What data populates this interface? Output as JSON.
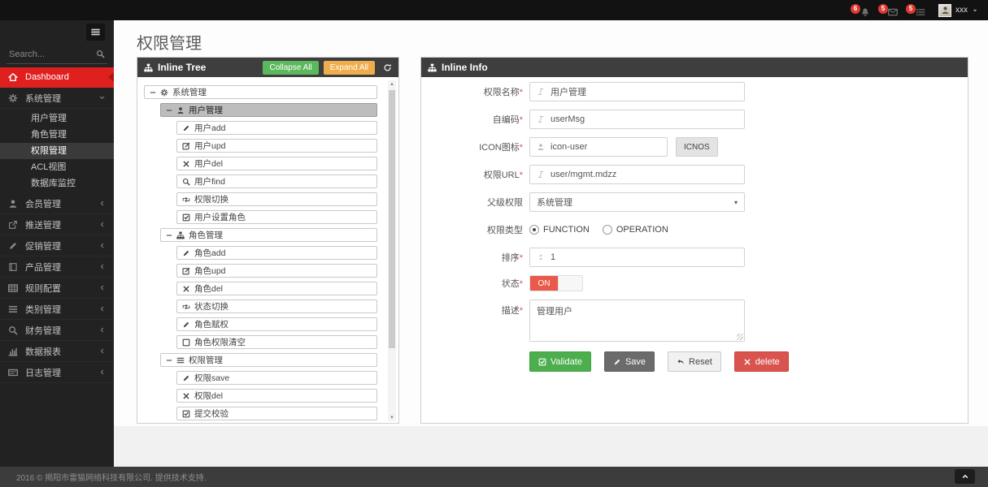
{
  "navbar": {
    "notifications": [
      {
        "key": "notifications-bell",
        "icon": "bell",
        "count": "6"
      },
      {
        "key": "notifications-messages",
        "icon": "envelope",
        "count": "5"
      },
      {
        "key": "notifications-tasks",
        "icon": "tasks",
        "count": "5"
      }
    ],
    "user": {
      "name": "xxx"
    }
  },
  "sidebar": {
    "search_placeholder": "Search...",
    "items": [
      {
        "key": "dashboard",
        "icon": "home",
        "label": "Dashboard",
        "active": true
      },
      {
        "key": "system-mgmt",
        "icon": "gears",
        "label": "系统管理",
        "chevron": "down",
        "children": [
          {
            "key": "user-mgmt",
            "label": "用户管理"
          },
          {
            "key": "role-mgmt",
            "label": "角色管理"
          },
          {
            "key": "perm-mgmt",
            "label": "权限管理",
            "active": true
          },
          {
            "key": "acl-view",
            "label": "ACL视图"
          },
          {
            "key": "db-monitor",
            "label": "数据库监控"
          }
        ]
      },
      {
        "key": "member-mgmt",
        "icon": "user",
        "label": "会员管理",
        "chevron": "left"
      },
      {
        "key": "push-mgmt",
        "icon": "share",
        "label": "推送管理",
        "chevron": "left"
      },
      {
        "key": "promo-mgmt",
        "icon": "pencil",
        "label": "促销管理",
        "chevron": "left"
      },
      {
        "key": "product-mgmt",
        "icon": "book",
        "label": "产品管理",
        "chevron": "left"
      },
      {
        "key": "rule-config",
        "icon": "table",
        "label": "规则配置",
        "chevron": "left"
      },
      {
        "key": "category-mgmt",
        "icon": "list",
        "label": "类别管理",
        "chevron": "left"
      },
      {
        "key": "finance-mgmt",
        "icon": "search",
        "label": "财务管理",
        "chevron": "left"
      },
      {
        "key": "data-report",
        "icon": "chart",
        "label": "数据报表",
        "chevron": "left"
      },
      {
        "key": "log-mgmt",
        "icon": "file",
        "label": "日志管理",
        "chevron": "left"
      }
    ]
  },
  "page": {
    "title": "权限管理"
  },
  "tree_panel": {
    "title": "Inline Tree",
    "collapse_all": "Collapse All",
    "expand_all": "Expand All",
    "nodes": [
      {
        "key": "system-mgmt",
        "level": 0,
        "toggle": "-",
        "icon": "gears",
        "label": "系统管理"
      },
      {
        "key": "user-mgmt",
        "level": 1,
        "toggle": "-",
        "icon": "user",
        "label": "用户管理",
        "selected": true
      },
      {
        "key": "user-add",
        "level": 2,
        "icon": "pencil",
        "label": "用户add"
      },
      {
        "key": "user-upd",
        "level": 2,
        "icon": "pencil-square",
        "label": "用户upd"
      },
      {
        "key": "user-del",
        "level": 2,
        "icon": "x",
        "label": "用户del"
      },
      {
        "key": "user-find",
        "level": 2,
        "icon": "search",
        "label": "用户find"
      },
      {
        "key": "perm-switch",
        "level": 2,
        "icon": "retweet",
        "label": "权限切换"
      },
      {
        "key": "user-set-role",
        "level": 2,
        "icon": "check-square",
        "label": "用户设置角色"
      },
      {
        "key": "role-mgmt",
        "level": 1,
        "toggle": "-",
        "icon": "sitemap",
        "label": "角色管理"
      },
      {
        "key": "role-add",
        "level": 2,
        "icon": "pencil",
        "label": "角色add"
      },
      {
        "key": "role-upd",
        "level": 2,
        "icon": "pencil-square",
        "label": "角色upd"
      },
      {
        "key": "role-del",
        "level": 2,
        "icon": "x",
        "label": "角色del"
      },
      {
        "key": "status-switch",
        "level": 2,
        "icon": "retweet",
        "label": "状态切换"
      },
      {
        "key": "role-grant",
        "level": 2,
        "icon": "pencil",
        "label": "角色赋权"
      },
      {
        "key": "role-perm-clear",
        "level": 2,
        "icon": "square-o",
        "label": "角色权限清空"
      },
      {
        "key": "perm-mgmt",
        "level": 1,
        "toggle": "-",
        "icon": "list",
        "label": "权限管理"
      },
      {
        "key": "perm-save",
        "level": 2,
        "icon": "pencil",
        "label": "权限save"
      },
      {
        "key": "perm-del",
        "level": 2,
        "icon": "x",
        "label": "权限del"
      },
      {
        "key": "submit-check",
        "level": 2,
        "icon": "check-square",
        "label": "提交校验"
      }
    ]
  },
  "info_panel": {
    "title": "Inline Info",
    "fields": [
      {
        "key": "perm-name",
        "label": "权限名称",
        "required": true,
        "type": "text",
        "icon": "italic",
        "value": "用户管理"
      },
      {
        "key": "self-code",
        "label": "自编码",
        "required": true,
        "type": "text",
        "icon": "italic",
        "value": "userMsg"
      },
      {
        "key": "icon-name",
        "label": "ICON图标",
        "required": true,
        "type": "text-button",
        "icon": "user",
        "value": "icon-user",
        "button": "ICNOS"
      },
      {
        "key": "perm-url",
        "label": "权限URL",
        "required": true,
        "type": "text",
        "icon": "italic",
        "value": "user/mgmt.mdzz"
      },
      {
        "key": "parent-perm",
        "label": "父级权限",
        "required": false,
        "type": "select",
        "value": "系统管理"
      },
      {
        "key": "perm-type",
        "label": "权限类型",
        "required": false,
        "type": "radio",
        "options": [
          {
            "label": "FUNCTION",
            "checked": true
          },
          {
            "label": "OPERATION",
            "checked": false
          }
        ]
      },
      {
        "key": "sort-order",
        "label": "排序",
        "required": true,
        "type": "text",
        "icon": "sort",
        "value": "1"
      },
      {
        "key": "status",
        "label": "状态",
        "required": true,
        "type": "toggle",
        "value": "ON"
      },
      {
        "key": "description",
        "label": "描述",
        "required": true,
        "type": "textarea",
        "value": "管理用户"
      }
    ],
    "actions": [
      {
        "key": "validate",
        "label": "Validate",
        "icon": "check-square",
        "style": "green"
      },
      {
        "key": "save",
        "label": "Save",
        "icon": "pencil",
        "style": "dark"
      },
      {
        "key": "reset",
        "label": "Reset",
        "icon": "reply",
        "style": "light"
      },
      {
        "key": "delete",
        "label": "delete",
        "icon": "x",
        "style": "red"
      }
    ]
  },
  "footer": {
    "text": "2016 © 揭阳市雷猫网络科技有限公司. 提供技术支持."
  }
}
